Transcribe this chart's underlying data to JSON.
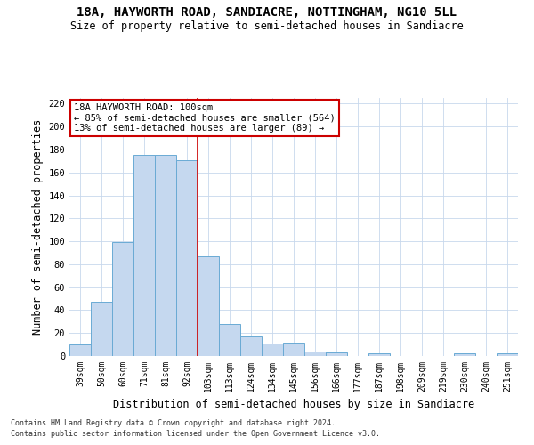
{
  "title1": "18A, HAYWORTH ROAD, SANDIACRE, NOTTINGHAM, NG10 5LL",
  "title2": "Size of property relative to semi-detached houses in Sandiacre",
  "xlabel": "Distribution of semi-detached houses by size in Sandiacre",
  "ylabel": "Number of semi-detached properties",
  "categories": [
    "39sqm",
    "50sqm",
    "60sqm",
    "71sqm",
    "81sqm",
    "92sqm",
    "103sqm",
    "113sqm",
    "124sqm",
    "134sqm",
    "145sqm",
    "156sqm",
    "166sqm",
    "177sqm",
    "187sqm",
    "198sqm",
    "209sqm",
    "219sqm",
    "230sqm",
    "240sqm",
    "251sqm"
  ],
  "values": [
    10,
    47,
    99,
    175,
    175,
    171,
    87,
    28,
    17,
    11,
    12,
    4,
    3,
    0,
    2,
    0,
    0,
    0,
    2,
    0,
    2
  ],
  "bar_color": "#c5d8ef",
  "bar_edge_color": "#6aaad4",
  "reference_line_label": "18A HAYWORTH ROAD: 100sqm",
  "annotation_line1": "← 85% of semi-detached houses are smaller (564)",
  "annotation_line2": "13% of semi-detached houses are larger (89) →",
  "annotation_box_color": "#ffffff",
  "annotation_box_edge": "#cc0000",
  "vline_color": "#cc0000",
  "ylim": [
    0,
    225
  ],
  "yticks": [
    0,
    20,
    40,
    60,
    80,
    100,
    120,
    140,
    160,
    180,
    200,
    220
  ],
  "footer1": "Contains HM Land Registry data © Crown copyright and database right 2024.",
  "footer2": "Contains public sector information licensed under the Open Government Licence v3.0.",
  "bg_color": "#ffffff",
  "grid_color": "#c8d8ec"
}
